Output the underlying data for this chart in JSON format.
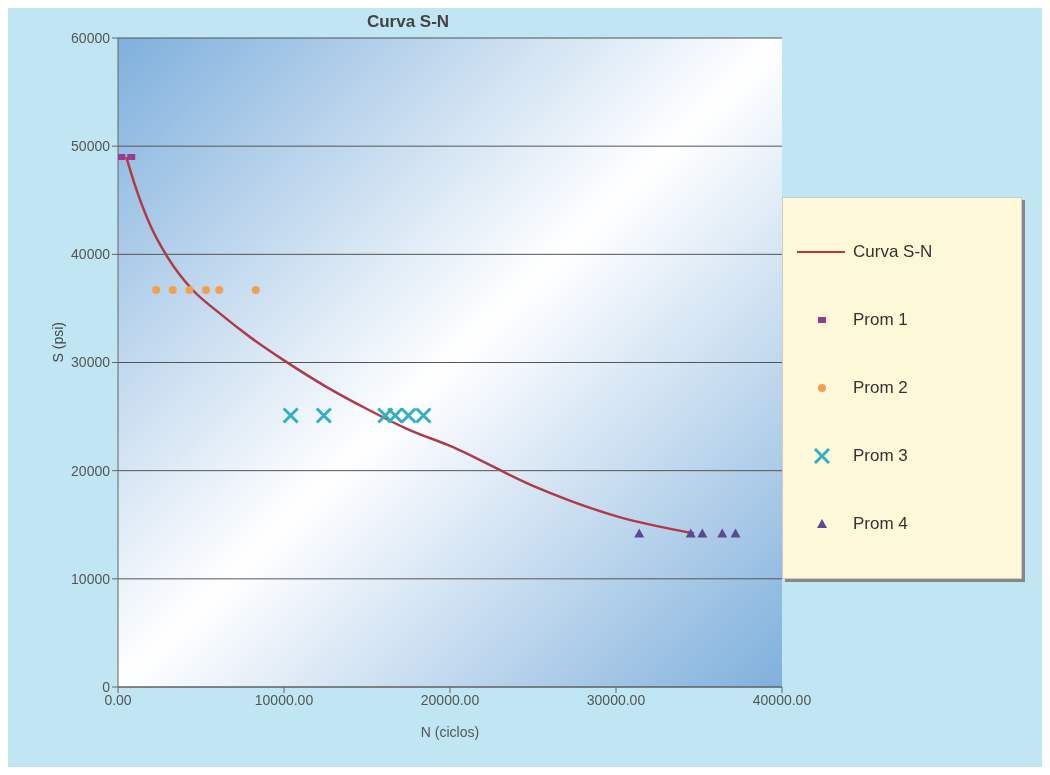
{
  "chart_data": {
    "type": "scatter",
    "title": "Curva S-N",
    "xlabel": "N (ciclos)",
    "ylabel": "S (psi)",
    "xlim": [
      0,
      40000
    ],
    "xticks": [
      {
        "value": 0,
        "label": "0.00"
      },
      {
        "value": 10000,
        "label": "10000.00"
      },
      {
        "value": 20000,
        "label": "20000.00"
      },
      {
        "value": 30000,
        "label": "30000.00"
      },
      {
        "value": 40000,
        "label": "40000.00"
      }
    ],
    "ylim": [
      0,
      60000
    ],
    "yticks": [
      0,
      10000,
      20000,
      30000,
      40000,
      50000,
      60000
    ],
    "grid": "y",
    "legend": "right",
    "series": [
      {
        "name": "Curva S-N",
        "type": "line",
        "color": "#b03a48",
        "marker": "none",
        "line_style": "solid",
        "x": [
          500,
          1000,
          2000,
          3000,
          4500,
          6000,
          8000,
          10000,
          12500,
          15000,
          17500,
          20000,
          25000,
          30000,
          34700
        ],
        "values": [
          49000,
          46500,
          42500,
          39700,
          36700,
          34700,
          32300,
          30200,
          27800,
          25700,
          23800,
          22300,
          18600,
          15800,
          14200
        ]
      },
      {
        "name": "Prom 1",
        "color": "#9b3b8c",
        "marker": "square",
        "x": [
          200,
          800
        ],
        "values": [
          49000,
          49000
        ]
      },
      {
        "name": "Prom 2",
        "color": "#f0a050",
        "marker": "circle",
        "x": [
          2300,
          3300,
          4300,
          5300,
          6100,
          8300
        ],
        "values": [
          36700,
          36700,
          36700,
          36700,
          36700,
          36700
        ]
      },
      {
        "name": "Prom 3",
        "color": "#30b0c0",
        "marker": "cross",
        "x": [
          10400,
          12400,
          16100,
          16700,
          17500,
          18400
        ],
        "values": [
          25100,
          25100,
          25100,
          25100,
          25100,
          25100
        ]
      },
      {
        "name": "Prom 4",
        "color": "#5a4a90",
        "marker": "triangle",
        "x": [
          31400,
          34500,
          35200,
          36400,
          37200
        ],
        "values": [
          14200,
          14200,
          14200,
          14200,
          14200
        ]
      }
    ]
  }
}
